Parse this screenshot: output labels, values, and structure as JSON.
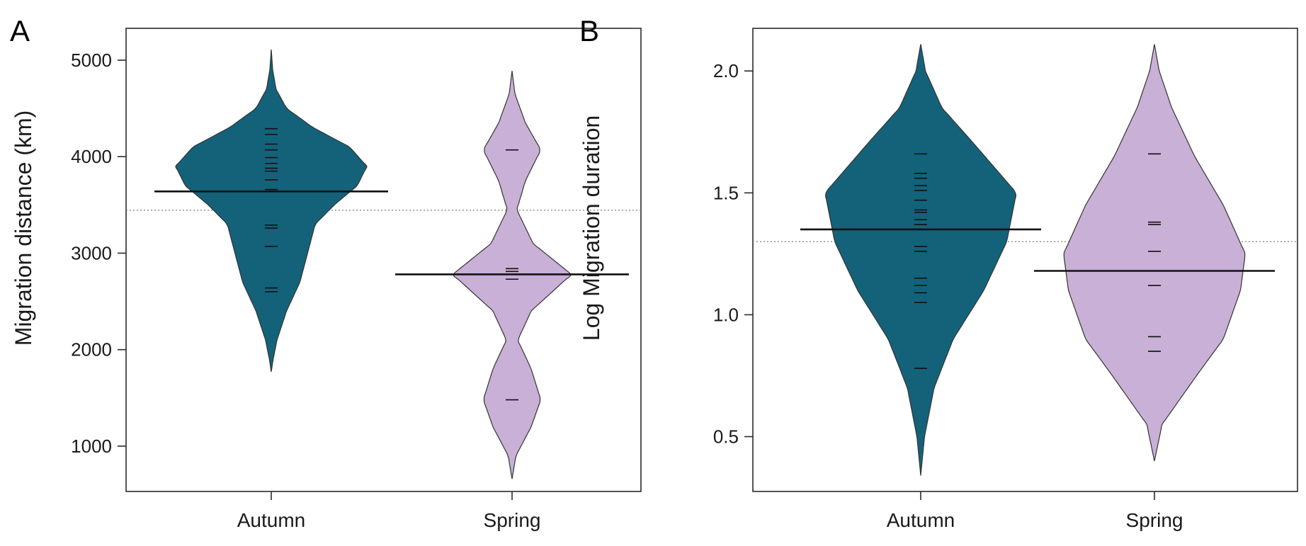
{
  "chart_data": [
    {
      "panel": "A",
      "type": "violin",
      "ylabel": "Migration distance (km)",
      "ylim": [
        530,
        5330
      ],
      "yticks": [
        1000,
        2000,
        3000,
        4000,
        5000
      ],
      "categories": [
        "Autumn",
        "Spring"
      ],
      "overall_mean": 3445,
      "colors": {
        "Autumn": "#13627a",
        "Spring": "#c9b0d6"
      },
      "series": [
        {
          "name": "Autumn",
          "mean": 3640,
          "range": [
            1770,
            5110
          ],
          "observations": [
            4290,
            4230,
            4130,
            4070,
            3990,
            3930,
            3880,
            3850,
            3760,
            3660,
            3290,
            3260,
            3070,
            2640,
            2600
          ],
          "density": [
            [
              1770,
              0.0
            ],
            [
              1900,
              0.02
            ],
            [
              2100,
              0.06
            ],
            [
              2400,
              0.16
            ],
            [
              2700,
              0.3
            ],
            [
              3000,
              0.38
            ],
            [
              3300,
              0.46
            ],
            [
              3500,
              0.66
            ],
            [
              3700,
              0.9
            ],
            [
              3900,
              1.0
            ],
            [
              4100,
              0.82
            ],
            [
              4300,
              0.44
            ],
            [
              4500,
              0.16
            ],
            [
              4700,
              0.05
            ],
            [
              4900,
              0.015
            ],
            [
              5110,
              0.0
            ]
          ]
        },
        {
          "name": "Spring",
          "mean": 2780,
          "range": [
            660,
            4890
          ],
          "observations": [
            4070,
            2840,
            2810,
            2730,
            1480
          ],
          "density": [
            [
              660,
              0.0
            ],
            [
              900,
              0.04
            ],
            [
              1200,
              0.2
            ],
            [
              1480,
              0.3
            ],
            [
              1800,
              0.2
            ],
            [
              2100,
              0.06
            ],
            [
              2400,
              0.2
            ],
            [
              2780,
              0.62
            ],
            [
              3100,
              0.22
            ],
            [
              3450,
              0.05
            ],
            [
              3750,
              0.14
            ],
            [
              4070,
              0.3
            ],
            [
              4350,
              0.14
            ],
            [
              4650,
              0.03
            ],
            [
              4890,
              0.0
            ]
          ]
        }
      ]
    },
    {
      "panel": "B",
      "type": "violin",
      "ylabel": "Log  Migration duration",
      "ylim": [
        0.275,
        2.175
      ],
      "yticks": [
        "0.5",
        "1.0",
        "1.5",
        "2.0"
      ],
      "categories": [
        "Autumn",
        "Spring"
      ],
      "overall_mean": 1.3,
      "colors": {
        "Autumn": "#13627a",
        "Spring": "#c9b0d6"
      },
      "series": [
        {
          "name": "Autumn",
          "mean": 1.35,
          "range": [
            0.34,
            2.11
          ],
          "observations": [
            1.66,
            1.58,
            1.56,
            1.53,
            1.51,
            1.47,
            1.43,
            1.42,
            1.39,
            1.37,
            1.28,
            1.26,
            1.15,
            1.12,
            1.09,
            1.05,
            0.78
          ],
          "density": [
            [
              0.34,
              0.0
            ],
            [
              0.5,
              0.04
            ],
            [
              0.7,
              0.14
            ],
            [
              0.9,
              0.34
            ],
            [
              1.1,
              0.66
            ],
            [
              1.3,
              0.9
            ],
            [
              1.5,
              1.0
            ],
            [
              1.7,
              0.56
            ],
            [
              1.85,
              0.22
            ],
            [
              2.0,
              0.05
            ],
            [
              2.11,
              0.0
            ]
          ]
        },
        {
          "name": "Spring",
          "mean": 1.18,
          "range": [
            0.4,
            2.11
          ],
          "observations": [
            1.66,
            1.38,
            1.37,
            1.26,
            1.12,
            0.91,
            0.85
          ],
          "density": [
            [
              0.4,
              0.0
            ],
            [
              0.55,
              0.08
            ],
            [
              0.75,
              0.44
            ],
            [
              0.9,
              0.72
            ],
            [
              1.1,
              0.9
            ],
            [
              1.25,
              0.95
            ],
            [
              1.45,
              0.72
            ],
            [
              1.65,
              0.42
            ],
            [
              1.85,
              0.18
            ],
            [
              2.0,
              0.05
            ],
            [
              2.11,
              0.0
            ]
          ]
        }
      ]
    }
  ]
}
